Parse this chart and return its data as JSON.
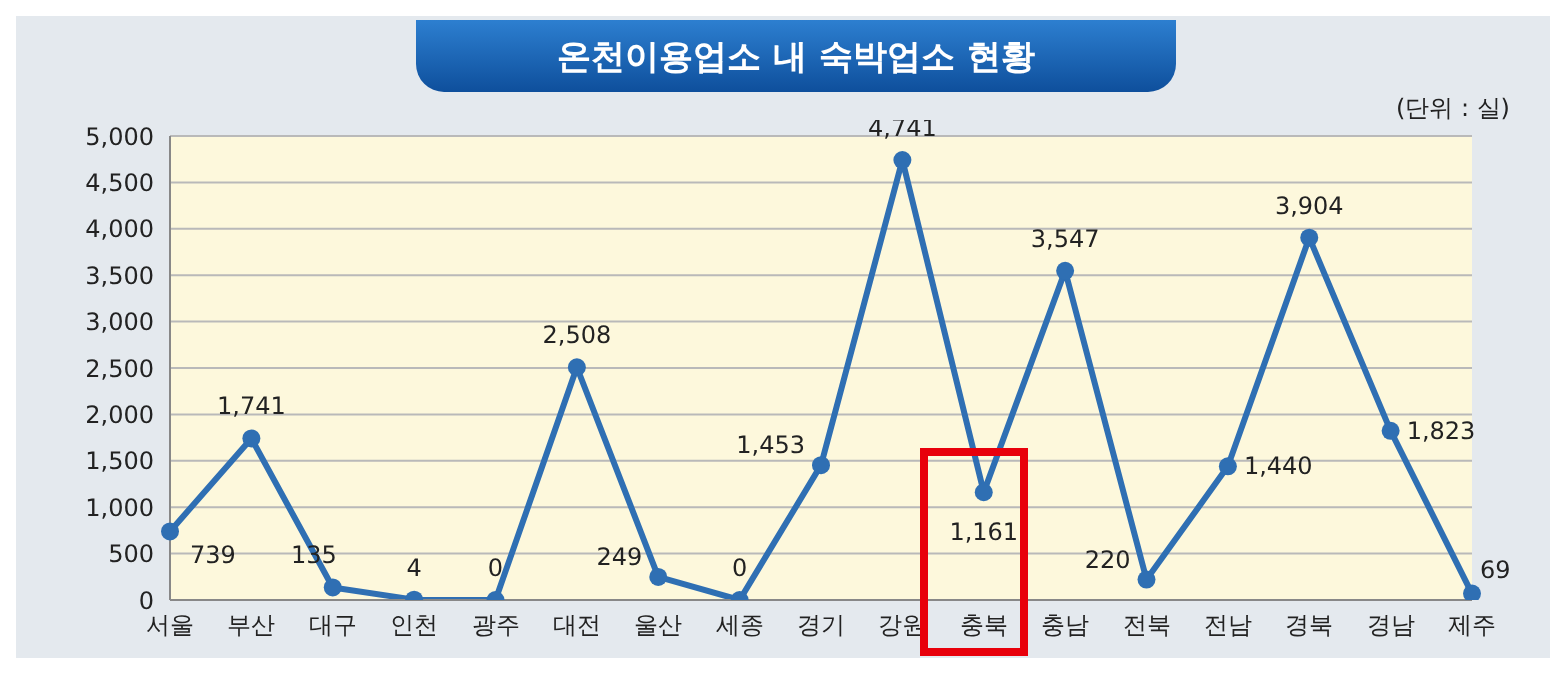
{
  "chart_data": {
    "type": "line",
    "title": "온천이용업소 내 숙박업소 현황",
    "categories": [
      "서울",
      "부산",
      "대구",
      "인천",
      "광주",
      "대전",
      "울산",
      "세종",
      "경기",
      "강원",
      "충북",
      "충남",
      "전북",
      "전남",
      "경북",
      "경남",
      "제주"
    ],
    "series": [
      {
        "color": "#2f6fb3",
        "values": [
          739,
          1741,
          135,
          4,
          0,
          2508,
          249,
          0,
          1453,
          4741,
          1161,
          3547,
          220,
          1440,
          3904,
          1823,
          69
        ],
        "value_labels": [
          "739",
          "1,741",
          "135",
          "4",
          "0",
          "2,508",
          "249",
          "0",
          "1,453",
          "4,741",
          "1,161",
          "3,547",
          "220",
          "1,440",
          "3,904",
          "1,823",
          "69"
        ]
      }
    ],
    "ylim": [
      0,
      5000
    ],
    "yticks": [
      0,
      500,
      {
        "value": 1000,
        "label": "1,000"
      },
      {
        "value": 1500,
        "label": "1,500"
      },
      {
        "value": 2000,
        "label": "2,000"
      },
      {
        "value": 2500,
        "label": "2,500"
      },
      {
        "value": 3000,
        "label": "3,000"
      },
      {
        "value": 3500,
        "label": "3,500"
      },
      {
        "value": 4000,
        "label": "4,000"
      },
      {
        "value": 4500,
        "label": "4,500"
      },
      {
        "value": 5000,
        "label": "5,000"
      }
    ],
    "grid": "y",
    "marker": "circle",
    "line_style": "solid",
    "annotations": [
      "(단위 : 실)"
    ]
  }
}
